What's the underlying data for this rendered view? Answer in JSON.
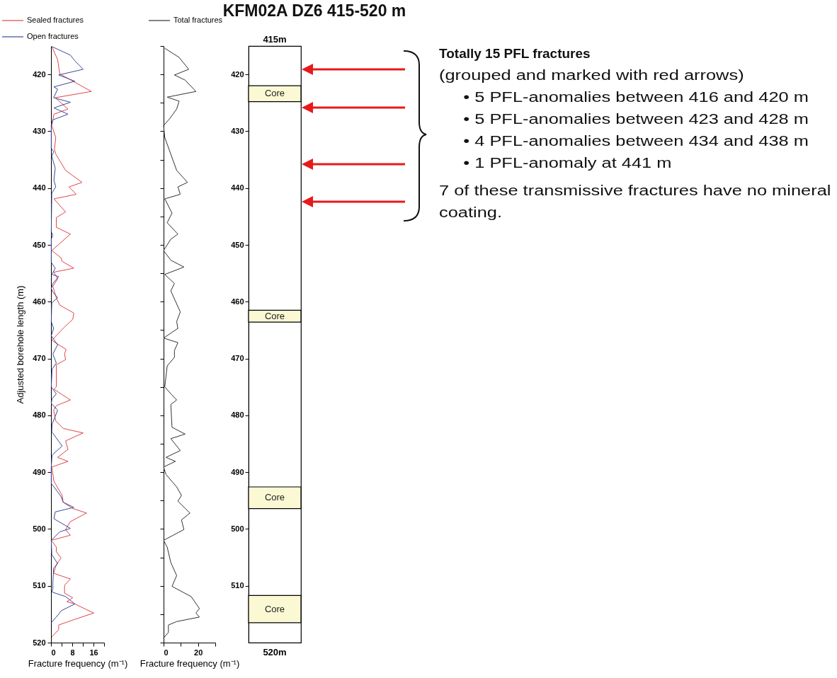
{
  "chart_data": [
    {
      "type": "line",
      "orientation": "horizontal",
      "xlabel": "Fracture frequency (m⁻¹)",
      "ylabel": "Adjusted borehole length (m)",
      "xlim": [
        0,
        20
      ],
      "xticks": [
        0,
        {
          "value": 4,
          "label": null
        },
        8,
        {
          "value": 12,
          "label": null
        },
        16,
        {
          "value": 20,
          "label": null
        }
      ],
      "ylim": [
        520,
        415
      ],
      "yticks": [
        420,
        430,
        440,
        450,
        460,
        470,
        480,
        490,
        500,
        510,
        520
      ],
      "legend": "top left",
      "line_style": "solid",
      "series": [
        {
          "name": "Sealed fractures",
          "color": "#e0454a",
          "x": [
            415.1,
            417.4,
            419.9,
            423.0,
            424.1,
            426.1,
            427.0,
            429.0,
            431.1,
            433.2,
            434.0,
            436.9,
            439.0,
            439.8,
            441.1,
            441.9,
            444.2,
            445.2,
            446.9,
            448.1,
            451.0,
            452.3,
            452.9,
            454.1,
            454.8,
            456.0,
            457.3,
            459.3,
            460.6,
            462.0,
            463.1,
            464.5,
            466.8,
            468.4,
            469.2,
            470.2,
            471.1,
            475.0,
            475.4,
            477.3,
            478.3,
            479.1,
            481.0,
            482.3,
            483.1,
            484.5,
            486.0,
            487.4,
            488.1,
            489.1,
            491.6,
            494.1,
            495.3,
            496.4,
            497.2,
            498.7,
            500.1,
            501.1,
            502.0,
            503.2,
            504.0,
            505.1,
            506.3,
            507.8,
            508.8,
            509.9,
            511.3,
            512.1,
            512.8,
            513.2,
            514.8,
            515.9,
            516.9,
            517.7,
            519.0
          ],
          "values": [
            0.3,
            2.5,
            3.3,
            15.2,
            1.6,
            6.4,
            1.1,
            0.3,
            1.8,
            1.3,
            1.8,
            5.5,
            11.7,
            6.8,
            9.5,
            1.1,
            5.5,
            2.0,
            2.0,
            7.3,
            0.3,
            3.8,
            4.2,
            8.6,
            1.1,
            2.5,
            0.7,
            2.0,
            3.3,
            8.6,
            8.2,
            5.0,
            0.3,
            5.7,
            5.1,
            5.5,
            2.0,
            2.0,
            1.1,
            7.3,
            2.0,
            1.0,
            1.8,
            4.6,
            12.1,
            5.5,
            6.4,
            2.5,
            6.4,
            0.3,
            1.1,
            4.2,
            4.6,
            8.2,
            13.4,
            7.3,
            5.5,
            7.3,
            0.1,
            2.0,
            2.0,
            3.8,
            2.0,
            1.0,
            7.3,
            5.1,
            5.1,
            8.2,
            6.0,
            9.0,
            16.1,
            9.0,
            2.9,
            2.9,
            0.3
          ]
        },
        {
          "name": "Open fractures",
          "color": "#3a4a9a",
          "x": [
            415.1,
            416.6,
            417.6,
            419.1,
            420.1,
            421.2,
            422.2,
            422.6,
            424.1,
            424.9,
            425.9,
            427.0,
            428.0,
            429.0,
            433.0,
            433.6,
            434.4,
            436.5,
            438.6,
            439.8,
            440.9,
            447.7,
            448.3,
            449.0,
            453.1,
            454.1,
            455.2,
            455.6,
            456.8,
            457.7,
            458.3,
            459.3,
            460.2,
            463.5,
            464.7,
            466.0,
            467.6,
            469.2,
            470.8,
            471.9,
            475.0,
            476.2,
            477.1,
            477.9,
            479.1,
            481.6,
            482.9,
            485.4,
            487.0,
            489.1,
            492.0,
            492.6,
            494.3,
            495.3,
            496.2,
            497.0,
            498.2,
            499.9,
            500.5,
            502.0,
            504.5,
            506.1,
            506.9,
            509.4,
            510.5,
            511.1,
            511.9,
            513.2,
            514.4,
            515.0,
            516.5
          ],
          "values": [
            0.3,
            7.3,
            9.0,
            12.1,
            2.9,
            9.0,
            1.1,
            2.5,
            1.0,
            7.3,
            1.1,
            6.4,
            0.7,
            0.1,
            0.1,
            1.0,
            0.3,
            1.6,
            1.1,
            1.8,
            0.3,
            0.1,
            0.7,
            0.1,
            0.1,
            1.6,
            0.4,
            2.9,
            0.7,
            0.1,
            0.7,
            2.5,
            0.3,
            0.1,
            1.0,
            0.1,
            2.5,
            0.7,
            2.0,
            0.4,
            0.1,
            2.0,
            0.4,
            0.1,
            2.5,
            0.4,
            0.3,
            4.2,
            0.4,
            0.1,
            0.1,
            1.1,
            3.8,
            4.6,
            8.6,
            1.6,
            1.1,
            7.3,
            3.3,
            0.1,
            0.3,
            2.5,
            1.0,
            0.7,
            0.7,
            0.4,
            5.5,
            9.0,
            3.8,
            2.9,
            0.1
          ]
        }
      ]
    },
    {
      "type": "line",
      "orientation": "horizontal",
      "xlabel": "Fracture frequency (m⁻¹)",
      "xlim": [
        0,
        30
      ],
      "xticks": [
        0,
        {
          "value": 10,
          "label": null
        },
        20,
        {
          "value": 30,
          "label": null
        }
      ],
      "ylim": [
        520,
        415
      ],
      "yticks": [
        415,
        420,
        425,
        430,
        435,
        440,
        445,
        450,
        455,
        460,
        465,
        470,
        475,
        480,
        485,
        490,
        495,
        500,
        505,
        510,
        515,
        520
      ],
      "tick_labels": "x",
      "legend": "top",
      "line_style": "solid",
      "series": [
        {
          "name": "Total fractures",
          "color": "#333333",
          "x": [
            415.4,
            417.0,
            419.1,
            420.1,
            421.0,
            423.0,
            424.0,
            424.7,
            426.1,
            427.8,
            429.0,
            431.1,
            436.9,
            439.0,
            439.8,
            441.1,
            441.9,
            444.4,
            446.1,
            448.1,
            449.0,
            451.0,
            452.7,
            453.9,
            455.2,
            456.8,
            458.1,
            461.8,
            463.5,
            464.7,
            466.4,
            467.2,
            468.6,
            469.8,
            471.3,
            475.0,
            476.2,
            477.3,
            478.1,
            482.1,
            483.3,
            484.1,
            486.2,
            487.4,
            488.1,
            489.1,
            490.4,
            492.6,
            494.1,
            495.1,
            497.2,
            498.4,
            500.1,
            502.0,
            503.2,
            505.9,
            508.2,
            510.1,
            511.9,
            514.0,
            514.8,
            515.5,
            516.3,
            516.9,
            518.2,
            519.2
          ],
          "values": [
            0.7,
            9.0,
            14.6,
            6.3,
            12.5,
            18.8,
            2.1,
            9.0,
            7.6,
            3.5,
            0,
            0.7,
            7.6,
            13.9,
            8.3,
            9.7,
            0.7,
            4.9,
            2.1,
            8.3,
            4.2,
            0,
            4.2,
            11.8,
            0.7,
            6.3,
            4.2,
            9.7,
            7.6,
            8.3,
            0,
            8.3,
            6.3,
            6.3,
            2.1,
            0.7,
            4.2,
            7.6,
            4.2,
            4.9,
            12.5,
            4.2,
            9.7,
            1.4,
            6.9,
            0,
            1.4,
            7.6,
            10.4,
            8.3,
            15.3,
            10.4,
            11.8,
            0,
            2.1,
            4.2,
            7.6,
            4.9,
            16.0,
            20.8,
            18.8,
            20.8,
            7.6,
            2.8,
            2.8,
            0
          ]
        }
      ]
    },
    {
      "type": "bar",
      "title": "KFM02A DZ6 415-520 m",
      "categories": [
        null
      ],
      "ylim": [
        520,
        415
      ],
      "yticks": [
        420,
        430,
        440,
        450,
        460,
        470,
        480,
        490,
        500,
        510
      ],
      "annotations": [
        "415m",
        "520m"
      ],
      "series": [
        {
          "color": "#fbf8d4",
          "base": [
            422.0
          ],
          "values": [
            2.8
          ],
          "value_labels": [
            "Core"
          ]
        },
        {
          "color": "#fbf8d4",
          "base": [
            461.5
          ],
          "values": [
            2.1
          ],
          "value_labels": [
            "Core"
          ]
        },
        {
          "color": "#fbf8d4",
          "base": [
            492.6
          ],
          "values": [
            3.8
          ],
          "value_labels": [
            "Core"
          ]
        },
        {
          "color": "#fbf8d4",
          "base": [
            511.7
          ],
          "values": [
            4.8
          ],
          "value_labels": [
            "Core"
          ]
        }
      ]
    },
    {
      "type": "other",
      "title": "Totally 15 PFL fractures",
      "annotations": [
        "(grouped and marked with red arrows)",
        "• 5 PFL-anomalies between 416 and 420 m",
        "• 5 PFL-anomalies between 423 and 428 m",
        "• 4 PFL-anomalies between 434 and 438 m",
        "• 1 PFL-anomaly at 441 m",
        "7 of these transmissive fractures have no mineral coating."
      ]
    }
  ]
}
